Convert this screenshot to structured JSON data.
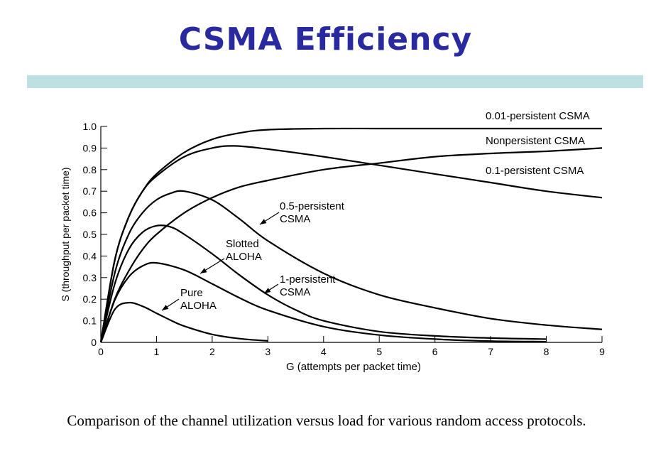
{
  "slide": {
    "title": "CSMA Efficiency",
    "caption": "Comparison of the channel utilization versus load for various random access protocols."
  },
  "colors": {
    "title": "#2a2aa0",
    "title_bar": "#bfe0e3",
    "ink": "#000000"
  },
  "chart_data": {
    "type": "line",
    "xlabel": "G (attempts per packet time)",
    "ylabel": "S (throughput per packet time)",
    "xlim": [
      0,
      9
    ],
    "ylim": [
      0,
      1.0
    ],
    "xticks": [
      0,
      1,
      2,
      3,
      4,
      5,
      6,
      7,
      8,
      9
    ],
    "yticks": [
      0,
      0.1,
      0.2,
      0.3,
      0.4,
      0.5,
      0.6,
      0.7,
      0.8,
      0.9,
      1.0
    ],
    "ytick_labels": [
      "0",
      "0.1",
      "0.2",
      "0.3",
      "0.4",
      "0.5",
      "0.6",
      "0.7",
      "0.8",
      "0.9",
      "1.0"
    ],
    "grid": false,
    "series": [
      {
        "name": "0.01-persistent CSMA",
        "x": [
          0,
          0.25,
          0.5,
          0.75,
          1,
          1.5,
          2,
          2.5,
          3,
          4,
          5,
          6,
          7,
          8,
          9
        ],
        "y": [
          0,
          0.38,
          0.58,
          0.7,
          0.78,
          0.88,
          0.94,
          0.97,
          0.985,
          0.99,
          0.99,
          0.99,
          0.99,
          0.99,
          0.99
        ]
      },
      {
        "name": "Nonpersistent CSMA",
        "x": [
          0,
          0.25,
          0.5,
          0.75,
          1,
          1.5,
          2,
          2.5,
          3,
          4,
          5,
          6,
          7,
          8,
          9
        ],
        "y": [
          0,
          0.2,
          0.33,
          0.43,
          0.5,
          0.6,
          0.67,
          0.72,
          0.75,
          0.8,
          0.83,
          0.86,
          0.875,
          0.885,
          0.9
        ]
      },
      {
        "name": "0.1-persistent CSMA",
        "x": [
          0,
          0.25,
          0.5,
          0.75,
          1,
          1.5,
          2,
          2.4,
          3,
          4,
          5,
          6,
          7,
          8,
          9
        ],
        "y": [
          0,
          0.38,
          0.58,
          0.7,
          0.77,
          0.86,
          0.9,
          0.91,
          0.895,
          0.86,
          0.82,
          0.78,
          0.74,
          0.7,
          0.67
        ]
      },
      {
        "name": "0.5-persistent CSMA",
        "x": [
          0,
          0.25,
          0.5,
          0.75,
          1,
          1.25,
          1.5,
          2,
          2.5,
          3,
          4,
          5,
          6,
          7,
          8,
          9
        ],
        "y": [
          0,
          0.32,
          0.5,
          0.6,
          0.66,
          0.69,
          0.7,
          0.66,
          0.57,
          0.47,
          0.32,
          0.22,
          0.16,
          0.11,
          0.08,
          0.06
        ]
      },
      {
        "name": "1-persistent CSMA",
        "x": [
          0,
          0.25,
          0.5,
          0.75,
          1,
          1.25,
          1.5,
          2,
          2.5,
          3,
          3.5,
          4,
          5,
          6,
          7,
          8
        ],
        "y": [
          0,
          0.27,
          0.43,
          0.51,
          0.54,
          0.535,
          0.5,
          0.41,
          0.31,
          0.22,
          0.15,
          0.1,
          0.05,
          0.03,
          0.02,
          0.015
        ]
      },
      {
        "name": "Slotted ALOHA",
        "x": [
          0,
          0.25,
          0.5,
          0.75,
          1,
          1.5,
          2,
          2.5,
          3,
          4,
          5,
          6,
          7,
          8
        ],
        "y": [
          0,
          0.195,
          0.303,
          0.354,
          0.368,
          0.335,
          0.271,
          0.205,
          0.149,
          0.073,
          0.034,
          0.015,
          0.006,
          0.003
        ]
      },
      {
        "name": "Pure ALOHA",
        "x": [
          0,
          0.25,
          0.5,
          0.75,
          1,
          1.25,
          1.5,
          2,
          2.5,
          3
        ],
        "y": [
          0,
          0.152,
          0.184,
          0.167,
          0.135,
          0.103,
          0.075,
          0.037,
          0.017,
          0.007
        ]
      }
    ],
    "annotations": [
      {
        "series": "0.01-persistent CSMA",
        "lines": [
          "0.01-persistent CSMA"
        ]
      },
      {
        "series": "Nonpersistent CSMA",
        "lines": [
          "Nonpersistent CSMA"
        ]
      },
      {
        "series": "0.1-persistent CSMA",
        "lines": [
          "0.1-persistent CSMA"
        ]
      },
      {
        "series": "0.5-persistent CSMA",
        "lines": [
          "0.5-persistent",
          "CSMA"
        ]
      },
      {
        "series": "Slotted ALOHA",
        "lines": [
          "Slotted",
          "ALOHA"
        ]
      },
      {
        "series": "1-persistent CSMA",
        "lines": [
          "1-persistent",
          "CSMA"
        ]
      },
      {
        "series": "Pure ALOHA",
        "lines": [
          "Pure",
          "ALOHA"
        ]
      }
    ]
  }
}
